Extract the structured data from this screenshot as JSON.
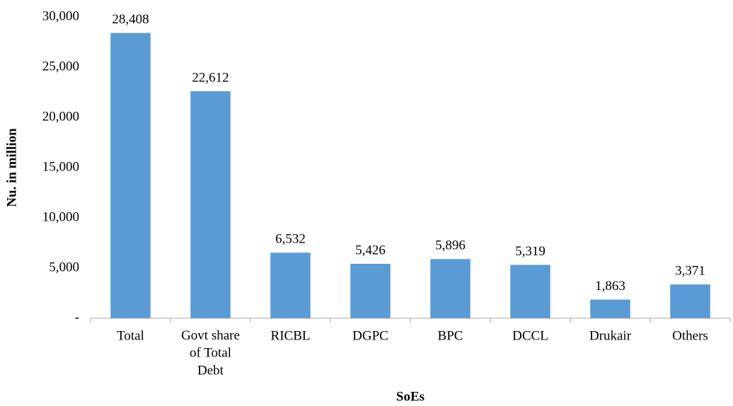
{
  "chart_data": {
    "type": "bar",
    "y_label": "Nu. in million",
    "x_label": "SoEs",
    "categories": [
      "Total",
      "Govt share of Total Debt",
      "RICBL",
      "DGPC",
      "BPC",
      "DCCL",
      "Drukair",
      "Others"
    ],
    "values": [
      28408,
      22612,
      6532,
      5426,
      5896,
      5319,
      1863,
      3371
    ],
    "value_labels": [
      "28,408",
      "22,612",
      "6,532",
      "5,426",
      "5,896",
      "5,319",
      "1,863",
      "3,371"
    ],
    "color": "#5b9bd5",
    "ylim": [
      0,
      30000
    ],
    "yticks": [
      {
        "value": 0,
        "label": "-"
      },
      {
        "value": 5000,
        "label": "5,000"
      },
      {
        "value": 10000,
        "label": "10,000"
      },
      {
        "value": 15000,
        "label": "15,000"
      },
      {
        "value": 20000,
        "label": "20,000"
      },
      {
        "value": 25000,
        "label": "25,000"
      },
      {
        "value": 30000,
        "label": "30,000"
      }
    ],
    "grid": false
  }
}
